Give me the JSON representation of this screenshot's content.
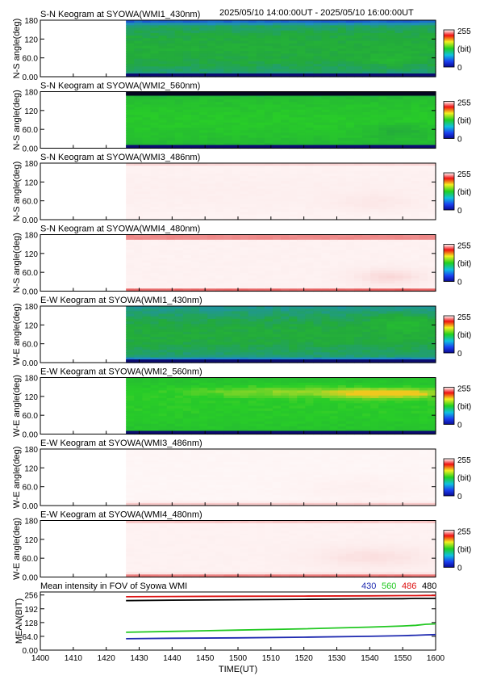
{
  "header": {
    "time_range": "2025/05/10 14:00:00UT - 2025/05/10 16:00:00UT"
  },
  "panels": [
    {
      "title": "S-N Keogram at SYOWA(WMI1_430nm)",
      "ylabel": "N-S angle(deg)",
      "palette": "green",
      "profile": "wmi1_sn"
    },
    {
      "title": "S-N Keogram at SYOWA(WMI2_560nm)",
      "ylabel": "N-S angle(deg)",
      "palette": "green",
      "profile": "wmi2_sn"
    },
    {
      "title": "S-N Keogram at SYOWA(WMI3_486nm)",
      "ylabel": "N-S angle(deg)",
      "palette": "pink",
      "profile": "wmi3_sn"
    },
    {
      "title": "S-N Keogram at SYOWA(WMI4_480nm)",
      "ylabel": "N-S angle(deg)",
      "palette": "pink",
      "profile": "wmi4_sn"
    },
    {
      "title": "E-W Keogram at SYOWA(WMI1_430nm)",
      "ylabel": "W-E angle(deg)",
      "palette": "green",
      "profile": "wmi1_ew"
    },
    {
      "title": "E-W Keogram at SYOWA(WMI2_560nm)",
      "ylabel": "W-E angle(deg)",
      "palette": "green",
      "profile": "wmi2_ew"
    },
    {
      "title": "E-W Keogram at SYOWA(WMI3_486nm)",
      "ylabel": "W-E angle(deg)",
      "palette": "pink",
      "profile": "wmi3_ew"
    },
    {
      "title": "E-W Keogram at SYOWA(WMI4_480nm)",
      "ylabel": "W-E angle(deg)",
      "palette": "pink",
      "profile": "wmi4_ew"
    }
  ],
  "keogram_axis": {
    "y_ticks": [
      "180",
      "120",
      "60.0",
      "0.00"
    ],
    "y_range": [
      0,
      180
    ],
    "colorbar": {
      "max_label": "255",
      "unit_label": "(bit)",
      "min_label": "0",
      "range": [
        0,
        255
      ]
    }
  },
  "mean_panel": {
    "title": "Mean intensity in FOV of Syowa WMI",
    "ylabel": "MEAN(BIT)",
    "y_ticks": [
      "256",
      "192",
      "128",
      "64.0",
      "0.00"
    ],
    "legend": [
      {
        "label": "430",
        "color": "#1f2ab0"
      },
      {
        "label": "560",
        "color": "#22c822"
      },
      {
        "label": "486",
        "color": "#dd1111"
      },
      {
        "label": "480",
        "color": "#000000"
      }
    ]
  },
  "x_axis": {
    "label": "TIME(UT)",
    "tick_labels": [
      "1400",
      "1410",
      "1420",
      "1430",
      "1440",
      "1450",
      "1500",
      "1510",
      "1520",
      "1530",
      "1540",
      "1550",
      "1600"
    ]
  },
  "chart_data": {
    "type": "line",
    "title": "Mean intensity in FOV of Syowa WMI",
    "xlabel": "TIME(UT)",
    "ylabel": "MEAN(BIT)",
    "x_units": "minutes after 14:00 UT",
    "xlim": [
      0,
      120
    ],
    "ylim": [
      0,
      270
    ],
    "x": [
      26,
      40,
      60,
      80,
      100,
      110,
      114,
      117,
      120
    ],
    "series": [
      {
        "name": "430",
        "color": "#1f2ab0",
        "values": [
          53,
          55,
          57,
          60,
          64,
          67,
          69,
          71,
          72
        ]
      },
      {
        "name": "560",
        "color": "#22c822",
        "values": [
          83,
          87,
          93,
          99,
          107,
          112,
          115,
          120,
          122
        ]
      },
      {
        "name": "486",
        "color": "#dd1111",
        "values": [
          248,
          249,
          250,
          251,
          252,
          253,
          253,
          254,
          254
        ]
      },
      {
        "name": "480",
        "color": "#000000",
        "values": [
          230,
          232,
          234,
          236,
          238,
          239,
          240,
          240,
          240
        ]
      }
    ]
  }
}
